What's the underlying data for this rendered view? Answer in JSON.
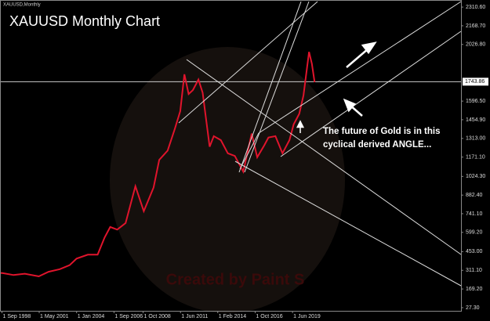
{
  "chart_data": {
    "type": "line",
    "title": "XAUUSD Monthly Chart",
    "symbol_label": "XAUUSD,Monthly",
    "annotation": "The future of Gold is in this cyclical derived ANGLE...",
    "watermark": "Created by Paint S",
    "current_price": 1743.86,
    "x": [
      1998.0,
      1998.7,
      1999.5,
      2000.3,
      2001.3,
      2002.0,
      2002.8,
      2003.5,
      2004.0,
      2004.8,
      2005.5,
      2006.0,
      2006.4,
      2006.9,
      2007.5,
      2008.2,
      2008.8,
      2009.5,
      2009.9,
      2010.5,
      2011.0,
      2011.4,
      2011.7,
      2012.0,
      2012.3,
      2012.7,
      2013.0,
      2013.5,
      2013.8,
      2014.3,
      2014.8,
      2015.3,
      2015.9,
      2016.5,
      2016.9,
      2017.4,
      2017.7,
      2018.2,
      2018.7,
      2019.2,
      2019.5,
      2019.9,
      2020.2,
      2020.6,
      2020.8,
      2021.0
    ],
    "series": [
      {
        "color": "#e0142c",
        "values": [
          295,
          290,
          275,
          285,
          265,
          300,
          320,
          350,
          400,
          430,
          430,
          560,
          640,
          620,
          670,
          950,
          760,
          940,
          1150,
          1220,
          1380,
          1520,
          1800,
          1650,
          1680,
          1760,
          1660,
          1250,
          1330,
          1300,
          1200,
          1180,
          1060,
          1350,
          1170,
          1260,
          1320,
          1330,
          1200,
          1300,
          1420,
          1500,
          1640,
          1970,
          1880,
          1740
        ]
      }
    ],
    "xlim": [
      1998.53,
      2031.45
    ],
    "ylim": [
      3.3,
      2364.5
    ],
    "xticks": [
      {
        "value": 1998.67,
        "label": "1 Sep 1998"
      },
      {
        "value": 2001.33,
        "label": "1 May 2001"
      },
      {
        "value": 2004.0,
        "label": "1 Jan 2004"
      },
      {
        "value": 2006.67,
        "label": "1 Sep 2006"
      },
      {
        "value": 2008.75,
        "label": "1 Oct 2008"
      },
      {
        "value": 2011.42,
        "label": "1 Jun 2011"
      },
      {
        "value": 2014.08,
        "label": "1 Feb 2014"
      },
      {
        "value": 2016.75,
        "label": "1 Oct 2016"
      },
      {
        "value": 2019.42,
        "label": "1 Jun 2019"
      }
    ],
    "yticks": [
      {
        "value": 2310.6,
        "label": "2310.60"
      },
      {
        "value": 2168.7,
        "label": "2168.70"
      },
      {
        "value": 2026.8,
        "label": "2026.80"
      },
      {
        "value": 1596.5,
        "label": "1596.50"
      },
      {
        "value": 1454.9,
        "label": "1454.90"
      },
      {
        "value": 1313.0,
        "label": "1313.00"
      },
      {
        "value": 1171.1,
        "label": "1171.10"
      },
      {
        "value": 1024.3,
        "label": "1024.30"
      },
      {
        "value": 882.4,
        "label": "882.40"
      },
      {
        "value": 741.1,
        "label": "741.10"
      },
      {
        "value": 599.2,
        "label": "599.20"
      },
      {
        "value": 453.0,
        "label": "453.00"
      },
      {
        "value": 311.1,
        "label": "311.10"
      },
      {
        "value": 169.2,
        "label": "169.20"
      },
      {
        "value": 27.3,
        "label": "27.30"
      }
    ]
  }
}
